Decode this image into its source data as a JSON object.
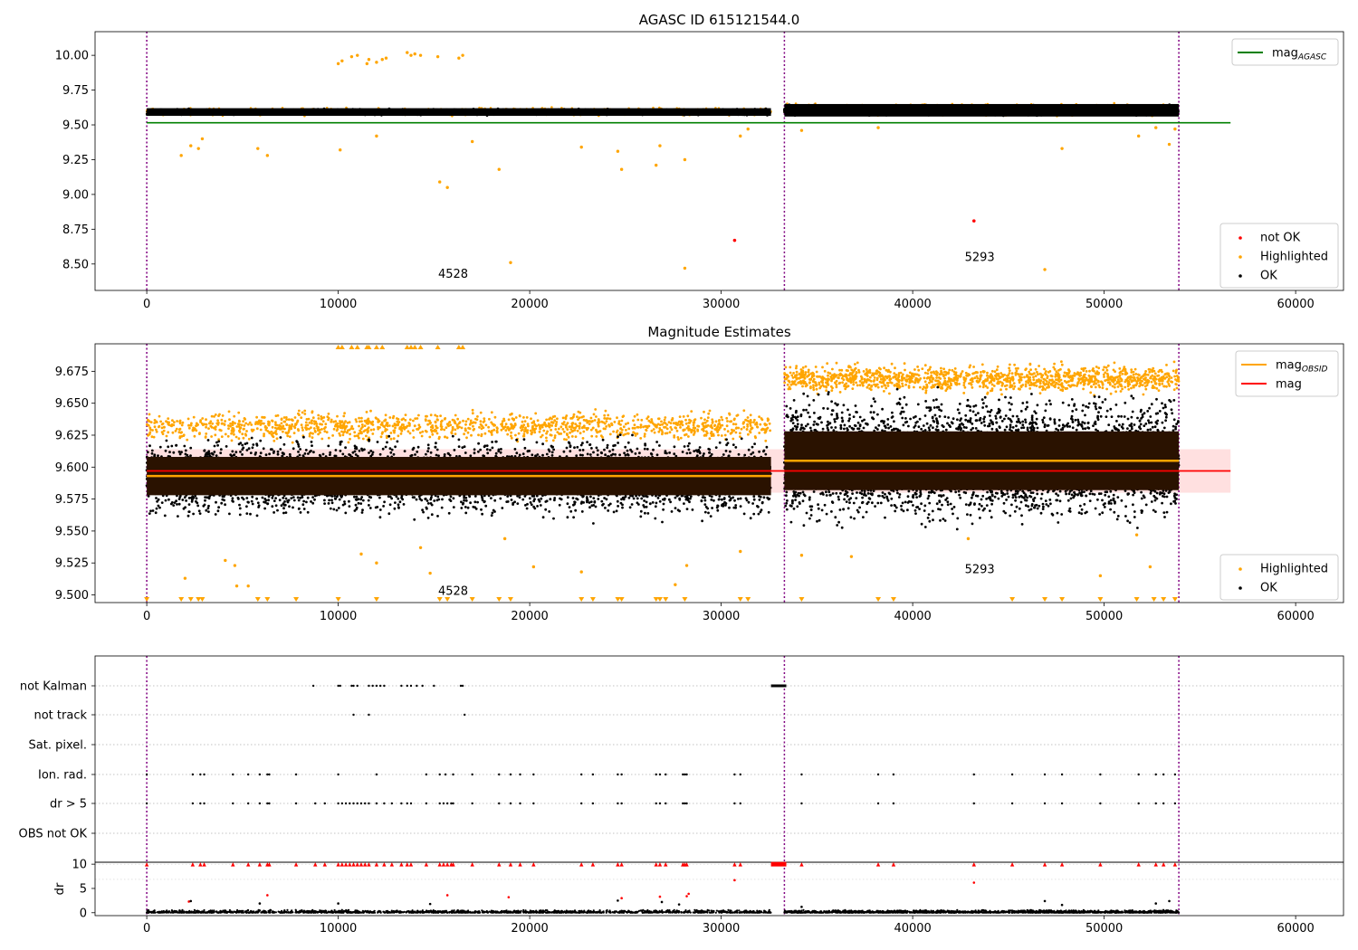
{
  "chart_data": [
    {
      "type": "scatter",
      "title": "AGASC ID 615121544.0",
      "xlim": [
        -2700,
        62500
      ],
      "ylim": [
        8.31,
        10.17
      ],
      "xticks": [
        0,
        10000,
        20000,
        30000,
        40000,
        50000,
        60000
      ],
      "yticks": [
        8.5,
        8.75,
        9.0,
        9.25,
        9.5,
        9.75,
        10.0
      ],
      "ytick_labels": [
        "8.50",
        "8.75",
        "9.00",
        "9.25",
        "9.50",
        "9.75",
        "10.00"
      ],
      "vlines": [
        0,
        33300,
        53900
      ],
      "segments": [
        {
          "label": "4528",
          "x": [
            0,
            32600
          ],
          "label_x": 16000,
          "label_y": 8.4
        },
        {
          "label": "5293",
          "x": [
            33300,
            53900
          ],
          "label_x": 43500,
          "label_y": 8.52
        }
      ],
      "hline": {
        "label": "mag_AGASC",
        "y": 9.515,
        "x": [
          0,
          56600
        ],
        "color": "#008000"
      },
      "ok_bands": [
        {
          "x": [
            0,
            32600
          ],
          "y": [
            9.565,
            9.62
          ]
        },
        {
          "x": [
            33300,
            53900
          ],
          "y": [
            9.56,
            9.65
          ]
        }
      ],
      "highlighted_points": [
        [
          10000,
          9.94
        ],
        [
          10200,
          9.96
        ],
        [
          10700,
          9.99
        ],
        [
          11000,
          10.0
        ],
        [
          11500,
          9.94
        ],
        [
          11600,
          9.97
        ],
        [
          12000,
          9.95
        ],
        [
          12300,
          9.97
        ],
        [
          12500,
          9.98
        ],
        [
          13600,
          10.02
        ],
        [
          13800,
          10.0
        ],
        [
          14000,
          10.01
        ],
        [
          14300,
          10.0
        ],
        [
          15200,
          9.99
        ],
        [
          16300,
          9.98
        ],
        [
          16500,
          10.0
        ],
        [
          1800,
          9.28
        ],
        [
          2300,
          9.35
        ],
        [
          2700,
          9.33
        ],
        [
          2900,
          9.4
        ],
        [
          5800,
          9.33
        ],
        [
          6300,
          9.28
        ],
        [
          10100,
          9.32
        ],
        [
          12000,
          9.42
        ],
        [
          15300,
          9.09
        ],
        [
          15700,
          9.05
        ],
        [
          17000,
          9.38
        ],
        [
          18400,
          9.18
        ],
        [
          19000,
          8.51
        ],
        [
          22700,
          9.34
        ],
        [
          24600,
          9.31
        ],
        [
          24800,
          9.18
        ],
        [
          26600,
          9.21
        ],
        [
          26800,
          9.35
        ],
        [
          28100,
          9.25
        ],
        [
          28100,
          8.47
        ],
        [
          31000,
          9.42
        ],
        [
          31400,
          9.47
        ],
        [
          34200,
          9.46
        ],
        [
          38200,
          9.48
        ],
        [
          47800,
          9.33
        ],
        [
          46900,
          8.46
        ],
        [
          51800,
          9.42
        ],
        [
          52700,
          9.48
        ],
        [
          53400,
          9.36
        ],
        [
          53700,
          9.47
        ]
      ],
      "not_ok_points": [
        [
          30700,
          8.67
        ],
        [
          43200,
          8.81
        ]
      ],
      "legend": [
        "mag_AGASC",
        "not OK",
        "Highlighted",
        "OK"
      ]
    },
    {
      "type": "scatter",
      "title": "Magnitude Estimates",
      "xlim": [
        -2700,
        62500
      ],
      "ylim": [
        9.494,
        9.6965
      ],
      "xticks": [
        0,
        10000,
        20000,
        30000,
        40000,
        50000,
        60000
      ],
      "yticks": [
        9.5,
        9.525,
        9.55,
        9.575,
        9.6,
        9.625,
        9.65,
        9.675
      ],
      "ytick_labels": [
        "9.500",
        "9.525",
        "9.550",
        "9.575",
        "9.600",
        "9.625",
        "9.650",
        "9.675"
      ],
      "vlines": [
        0,
        33300,
        53900
      ],
      "segments": [
        {
          "label": "4528",
          "x": [
            0,
            32600
          ],
          "label_x": 16000,
          "label_y": 9.5
        }
      ],
      "segment_labels_extra": [
        {
          "label": "5293",
          "label_x": 43500,
          "label_y": 9.517
        }
      ],
      "mag_line": {
        "label": "mag",
        "y": 9.597,
        "x": [
          0,
          56600
        ],
        "band": [
          9.58,
          9.614
        ],
        "color": "#ff0000"
      },
      "mag_obsid": [
        {
          "x": [
            0,
            32600
          ],
          "y": 9.593
        },
        {
          "x": [
            33300,
            53900
          ],
          "y": 9.605
        }
      ],
      "ok_bands": [
        {
          "x": [
            0,
            32600
          ],
          "y": [
            9.555,
            9.628
          ],
          "core": [
            9.578,
            9.608
          ]
        },
        {
          "x": [
            33300,
            53900
          ],
          "y": [
            9.548,
            9.665
          ],
          "core": [
            9.582,
            9.628
          ]
        }
      ],
      "highlighted_points": [
        [
          2000,
          9.513
        ],
        [
          4100,
          9.527
        ],
        [
          4600,
          9.523
        ],
        [
          4700,
          9.507
        ],
        [
          5300,
          9.507
        ],
        [
          11200,
          9.532
        ],
        [
          12000,
          9.525
        ],
        [
          14300,
          9.537
        ],
        [
          14800,
          9.517
        ],
        [
          18700,
          9.544
        ],
        [
          20200,
          9.522
        ],
        [
          22700,
          9.518
        ],
        [
          27600,
          9.508
        ],
        [
          28200,
          9.523
        ],
        [
          31000,
          9.534
        ],
        [
          34200,
          9.531
        ],
        [
          36800,
          9.53
        ],
        [
          42900,
          9.544
        ],
        [
          49800,
          9.515
        ],
        [
          51700,
          9.547
        ],
        [
          52400,
          9.522
        ]
      ],
      "clipped_high_x": [
        10000,
        10200,
        10700,
        11000,
        11500,
        11600,
        12000,
        12300,
        13600,
        13800,
        14000,
        14300,
        15200,
        16300,
        16500
      ],
      "clipped_low_x": [
        0,
        1800,
        2300,
        2700,
        2900,
        5800,
        6300,
        7800,
        10000,
        12000,
        15300,
        15700,
        17000,
        18400,
        19000,
        22700,
        23300,
        24600,
        24800,
        26600,
        26800,
        27100,
        28100,
        31000,
        31400,
        34200,
        38200,
        39000,
        45200,
        46900,
        47800,
        49800,
        51700,
        52600,
        53100,
        53700
      ],
      "legend": [
        "mag_OBSID",
        "mag",
        "Highlighted",
        "OK"
      ]
    },
    {
      "type": "scatter",
      "title": "",
      "xlim": [
        -2700,
        62500
      ],
      "xticks": [
        0,
        10000,
        20000,
        30000,
        40000,
        50000,
        60000
      ],
      "flag_rows": [
        "not Kalman",
        "not track",
        "Sat. pixel.",
        "Ion. rad.",
        "dr > 5",
        "OBS not OK"
      ],
      "vlines": [
        0,
        33300,
        53900
      ],
      "flags": {
        "not Kalman": [
          8700,
          10000,
          10100,
          10700,
          10800,
          11000,
          11600,
          11800,
          12000,
          12200,
          12400,
          13300,
          13600,
          13800,
          14100,
          14400,
          15000,
          16400,
          16500
        ],
        "not track": [
          10800,
          11600,
          16600
        ],
        "Sat. pixel.": [],
        "Ion. rad.": [
          0,
          2400,
          2800,
          3000,
          4500,
          5300,
          5900,
          6300,
          6400,
          7800,
          10000,
          12000,
          14600,
          15300,
          15600,
          16000,
          17000,
          18400,
          19000,
          19500,
          20200,
          22700,
          23300,
          24600,
          24800,
          26600,
          26800,
          27100,
          28000,
          28100,
          28200,
          30700,
          31000,
          34200,
          38200,
          39000,
          43200,
          45200,
          46900,
          47800,
          49800,
          51800,
          52700,
          53100,
          53700
        ],
        "dr > 5": [
          0,
          2400,
          2800,
          3000,
          4500,
          5300,
          5900,
          6300,
          6400,
          7800,
          8800,
          9300,
          10000,
          10200,
          10400,
          10600,
          10800,
          11000,
          11200,
          11400,
          11600,
          12000,
          12400,
          12800,
          13300,
          13600,
          13800,
          14600,
          15300,
          15500,
          15700,
          15900,
          16000,
          17000,
          18400,
          19000,
          19500,
          20200,
          22700,
          23300,
          24600,
          24800,
          26600,
          26800,
          27100,
          28000,
          28100,
          28200,
          30700,
          31000,
          34200,
          38200,
          39000,
          43200,
          45200,
          46900,
          47800,
          49800,
          51800,
          52700,
          53100,
          53700
        ],
        "OBS not OK": []
      },
      "not_kalman_dense": [
        32600,
        33400
      ],
      "dr_axis": {
        "ylabel": "dr",
        "yticks": [
          0,
          5,
          10
        ],
        "ylim": [
          -0.6,
          10.4
        ],
        "clipped_x": [
          0,
          2400,
          2800,
          3000,
          4500,
          5300,
          5900,
          6300,
          6400,
          7800,
          8800,
          9300,
          10000,
          10200,
          10400,
          10600,
          10800,
          11000,
          11200,
          11400,
          11600,
          12000,
          12400,
          12800,
          13300,
          13600,
          13800,
          14600,
          15300,
          15500,
          15700,
          15900,
          16000,
          17000,
          18400,
          19000,
          19500,
          20200,
          22700,
          23300,
          24600,
          24800,
          26600,
          26800,
          27100,
          28000,
          28100,
          28200,
          30700,
          31000,
          34200,
          38200,
          39000,
          43200,
          45200,
          46900,
          47800,
          49800,
          51800,
          52700,
          53100,
          53700
        ],
        "red_points": [
          [
            30700,
            6.7
          ],
          [
            43200,
            6.2
          ],
          [
            2200,
            2.3
          ],
          [
            6300,
            3.6
          ],
          [
            15700,
            3.6
          ],
          [
            18900,
            3.2
          ],
          [
            24800,
            3.0
          ],
          [
            26800,
            3.3
          ],
          [
            28200,
            3.4
          ],
          [
            28300,
            3.9
          ]
        ],
        "black_points": [
          [
            2300,
            2.4
          ],
          [
            5900,
            1.9
          ],
          [
            10000,
            1.9
          ],
          [
            14800,
            1.8
          ],
          [
            24600,
            2.5
          ],
          [
            26900,
            2.2
          ],
          [
            27800,
            1.7
          ],
          [
            46900,
            2.4
          ],
          [
            47800,
            1.6
          ],
          [
            52700,
            1.9
          ],
          [
            53400,
            2.4
          ],
          [
            34200,
            1.2
          ]
        ],
        "near_zero_bands": [
          [
            0,
            32600
          ],
          [
            33300,
            53900
          ]
        ]
      }
    }
  ]
}
